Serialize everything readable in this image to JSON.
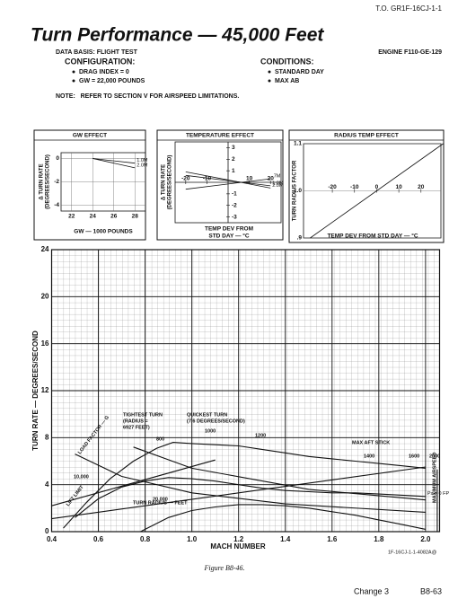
{
  "header": {
    "doc_id": "T.O. GR1F-16CJ-1-1",
    "title": "Turn Performance — 45,000 Feet",
    "data_basis": "DATA BASIS: FLIGHT TEST",
    "engine": "ENGINE F110-GE-129"
  },
  "configuration": {
    "heading": "CONFIGURATION:",
    "items": [
      "DRAG INDEX = 0",
      "GW = 22,000 POUNDS"
    ]
  },
  "conditions": {
    "heading": "CONDITIONS:",
    "items": [
      "STANDARD DAY",
      "MAX AB"
    ]
  },
  "note": "NOTE:   REFER TO SECTION V FOR AIRSPEED LIMITATIONS.",
  "chart_data": [
    {
      "type": "line",
      "title": "GW EFFECT",
      "ylabel": [
        "Δ TURN RATE",
        "(DEGREES/SECOND)"
      ],
      "xlabel": [
        "GW — 1000 POUNDS"
      ],
      "xlim": [
        21,
        29
      ],
      "ylim": [
        -4.5,
        0.5
      ],
      "xticks": [
        22,
        24,
        26,
        28
      ],
      "yticks": [
        -4,
        -2,
        0
      ],
      "series": [
        {
          "name": "1.0M",
          "x": [
            24,
            28
          ],
          "values": [
            0,
            -0.4
          ]
        },
        {
          "name": "2.0M",
          "x": [
            24,
            28
          ],
          "values": [
            0,
            -0.8
          ]
        }
      ]
    },
    {
      "type": "line",
      "title": "TEMPERATURE EFFECT",
      "ylabel": [
        "Δ TURN RATE",
        "(DEGREES/SECOND)"
      ],
      "xlabel": [
        "TEMP DEV FROM",
        "STD DAY — °C"
      ],
      "xlim": [
        -25,
        25
      ],
      "ylim": [
        -3.5,
        3.5
      ],
      "xticks": [
        -20,
        -10,
        10,
        20
      ],
      "yticks": [
        3,
        2,
        1,
        -1,
        -2,
        -3
      ],
      "series": [
        {
          "name": "2.0M",
          "x": [
            -20,
            20
          ],
          "values": [
            0.9,
            -0.5
          ]
        },
        {
          "name": "1.0M",
          "x": [
            -20,
            20
          ],
          "values": [
            0.6,
            -0.3
          ]
        },
        {
          "name": ".7M",
          "x": [
            -20,
            20
          ],
          "values": [
            -0.6,
            0.3
          ]
        }
      ]
    },
    {
      "type": "line",
      "title": "RADIUS TEMP EFFECT",
      "ylabel": [
        "TURN RADIUS FACTOR"
      ],
      "xlabel": [
        "TEMP DEV FROM STD DAY — °C"
      ],
      "xlim": [
        -33,
        29
      ],
      "ylim": [
        0.9,
        1.1
      ],
      "xticks": [
        -20,
        -10,
        0,
        10,
        20
      ],
      "yticks": [
        {
          "value": 0.9,
          "label": ".9"
        },
        {
          "value": 1,
          "label": "1.0"
        },
        {
          "value": 1.1,
          "label": "1.1"
        }
      ],
      "series": [
        {
          "x": [
            -30,
            30
          ],
          "values": [
            0.9,
            1.1
          ]
        }
      ]
    },
    {
      "type": "line",
      "ylabel": [
        "TURN RATE — DEGREES/SECOND"
      ],
      "xlabel": [
        "MACH NUMBER"
      ],
      "xlim": [
        0.4,
        2.06
      ],
      "ylim": [
        0,
        24
      ],
      "xticks": [
        0.4,
        0.6,
        0.8,
        {
          "value": 1,
          "label": "1.0"
        },
        1.2,
        1.4,
        1.6,
        1.8,
        {
          "value": 2,
          "label": "2.0"
        }
      ],
      "yticks": [
        0,
        4,
        8,
        12,
        16,
        20,
        24
      ],
      "series": [
        {
          "x": [
            0.45,
            0.55,
            0.65,
            0.75,
            0.85,
            0.92,
            1.0,
            1.1,
            1.2,
            1.3,
            1.4,
            1.5,
            1.6,
            1.7,
            1.8,
            1.9,
            2.0
          ],
          "values": [
            0.3,
            2.5,
            4.5,
            6.0,
            7.1,
            7.6,
            7.5,
            7.4,
            7.3,
            7.0,
            6.7,
            6.4,
            6.2,
            6.0,
            5.8,
            5.6,
            5.4
          ]
        },
        {
          "name": "Ps = 0 FPS",
          "x": [
            0.5,
            0.6,
            0.7,
            0.8,
            0.9,
            1.0,
            1.1,
            1.2,
            1.3,
            1.4,
            1.5,
            1.6,
            1.7,
            1.8,
            1.9,
            2.0
          ],
          "values": [
            1.2,
            2.8,
            3.8,
            4.3,
            4.6,
            4.5,
            4.3,
            4.0,
            3.7,
            3.5,
            3.4,
            3.3,
            3.3,
            3.2,
            3.1,
            3.0
          ]
        },
        {
          "x": [
            0.78,
            0.9,
            1.0,
            1.1,
            1.2,
            1.3,
            1.4,
            1.5,
            1.6,
            1.7,
            1.8,
            1.9,
            2.0
          ],
          "values": [
            0,
            1.2,
            1.8,
            2.1,
            2.3,
            2.3,
            2.2,
            2.0,
            1.7,
            1.4,
            1.0,
            0.6,
            0.2
          ]
        },
        {
          "x": [
            0.4,
            1.1
          ],
          "values": [
            2.2,
            6.1
          ]
        },
        {
          "x": [
            0.4,
            2.0
          ],
          "values": [
            1.1,
            5.5
          ]
        },
        {
          "x": [
            0.5,
            0.7,
            1.0,
            1.4,
            2.0
          ],
          "values": [
            6.6,
            4.7,
            3.3,
            2.36,
            1.65
          ]
        },
        {
          "x": [
            0.75,
            1.0,
            1.5,
            2.0
          ],
          "values": [
            7.2,
            5.4,
            3.6,
            2.7
          ]
        },
        {
          "x": [
            2.05,
            2.05
          ],
          "values": [
            0,
            5.3
          ]
        }
      ],
      "annotations": [
        "TIGHTEST TURN",
        "(RADIUS =",
        "6927 FEET)",
        "QUICKEST TURN",
        "(7.6 DEGREES/SECOND)",
        "MAX AFT STICK",
        "LOAD FACTOR — G",
        "TURN RADIUS — FEET",
        "LIFT LIMIT",
        "MAXIMUM AIRSPEED",
        "10,000",
        "20,000",
        "800",
        "1000",
        "1200",
        "1400",
        "1600",
        "2000"
      ]
    }
  ],
  "footer": {
    "code": "1F-16CJ-1-1-4082A@",
    "caption": "Figure B8-46.",
    "change": "Change 3",
    "page": "B8-63"
  }
}
